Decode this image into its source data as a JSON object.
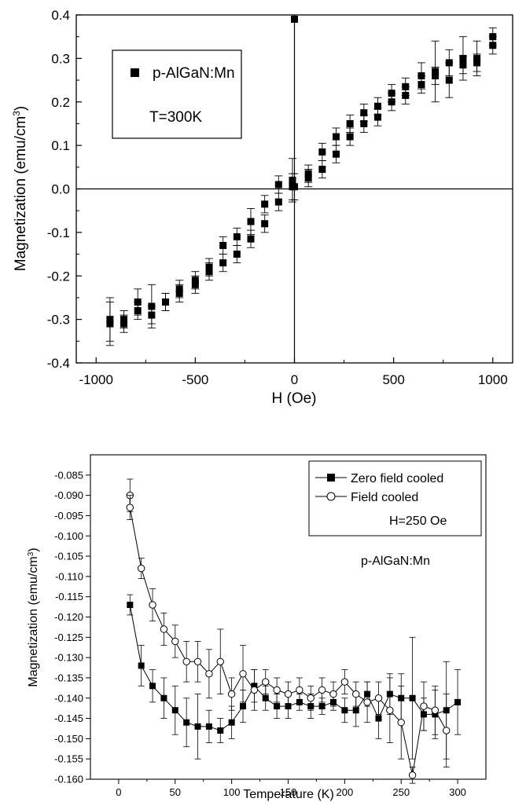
{
  "chart_data": [
    {
      "type": "scatter",
      "xlabel": "H (Oe)",
      "ylabel": "Magnetization (emu/cm3)",
      "ylabel_main": "Magnetization (emu/cm",
      "ylabel_sup": "3",
      "ylabel_close": ")",
      "xlim": [
        -1100,
        1100
      ],
      "ylim": [
        -0.4,
        0.4
      ],
      "xticks": [
        -1000,
        -500,
        0,
        500,
        1000
      ],
      "yticks": [
        "-0.4",
        "-0.3",
        "-0.2",
        "-0.1",
        "0.0",
        "0.1",
        "0.2",
        "0.3",
        "0.4"
      ],
      "legend_entry": "p-AlGaN:Mn",
      "annotation": "T=300K",
      "legend_placement": "upper-left",
      "grid": false,
      "marker": "filled-square",
      "color": "#000000",
      "series": [
        {
          "x": [
            -930,
            -930,
            -860,
            -860,
            -790,
            -790,
            -720,
            -720,
            -650,
            -650,
            -580,
            -580,
            -500,
            -500,
            -430,
            -430,
            -360,
            -360,
            -290,
            -290,
            -220,
            -220,
            -150,
            -150,
            -80,
            -80,
            -10,
            -10,
            0,
            0,
            70,
            70,
            140,
            140,
            210,
            210,
            280,
            280,
            350,
            350,
            420,
            420,
            490,
            490,
            560,
            560,
            640,
            640,
            710,
            710,
            780,
            780,
            850,
            850,
            920,
            920,
            1000,
            1000
          ],
          "y": [
            -0.31,
            -0.3,
            -0.3,
            -0.31,
            -0.26,
            -0.28,
            -0.27,
            -0.29,
            -0.26,
            -0.26,
            -0.24,
            -0.23,
            -0.21,
            -0.22,
            -0.18,
            -0.19,
            -0.13,
            -0.17,
            -0.11,
            -0.15,
            -0.075,
            -0.115,
            -0.035,
            -0.08,
            0.01,
            -0.03,
            0.02,
            0.005,
            0.39,
            0.005,
            0.025,
            0.035,
            0.085,
            0.045,
            0.12,
            0.08,
            0.15,
            0.12,
            0.175,
            0.15,
            0.19,
            0.165,
            0.22,
            0.2,
            0.235,
            0.215,
            0.26,
            0.24,
            0.27,
            0.26,
            0.29,
            0.25,
            0.3,
            0.285,
            0.3,
            0.29,
            0.35,
            0.33
          ],
          "err": [
            0.05,
            0.05,
            0.02,
            0.02,
            0.03,
            0.02,
            0.05,
            0.02,
            0.02,
            0.02,
            0.02,
            0.02,
            0.02,
            0.02,
            0.02,
            0.02,
            0.02,
            0.02,
            0.02,
            0.02,
            0.03,
            0.02,
            0.02,
            0.02,
            0.02,
            0.02,
            0.05,
            0.03,
            0.0,
            0.03,
            0.02,
            0.02,
            0.02,
            0.02,
            0.02,
            0.02,
            0.02,
            0.02,
            0.02,
            0.02,
            0.02,
            0.02,
            0.02,
            0.02,
            0.02,
            0.02,
            0.03,
            0.02,
            0.07,
            0.02,
            0.03,
            0.04,
            0.05,
            0.02,
            0.04,
            0.02,
            0.02,
            0.02
          ]
        }
      ]
    },
    {
      "type": "line",
      "xlabel": "Temperature (K)",
      "ylabel": "Magnetization (emu/cm3)",
      "ylabel_main": "Magnetization (emu/cm",
      "ylabel_sup": "3",
      "ylabel_close": ")",
      "xlim": [
        -25,
        325
      ],
      "ylim": [
        -0.16,
        -0.08
      ],
      "xticks": [
        0,
        50,
        100,
        150,
        200,
        250,
        300
      ],
      "yticks": [
        "-0.085",
        "-0.090",
        "-0.095",
        "-0.100",
        "-0.105",
        "-0.110",
        "-0.115",
        "-0.120",
        "-0.125",
        "-0.130",
        "-0.135",
        "-0.140",
        "-0.145",
        "-0.150",
        "-0.155",
        "-0.160"
      ],
      "annotation_field": "H=250 Oe",
      "annotation_sample": "p-AlGaN:Mn",
      "legend_placement": "upper-right",
      "grid": false,
      "series": [
        {
          "name": "Zero field cooled",
          "marker": "filled-square",
          "x": [
            10,
            20,
            30,
            40,
            50,
            60,
            70,
            80,
            90,
            100,
            110,
            120,
            130,
            140,
            150,
            160,
            170,
            180,
            190,
            200,
            210,
            220,
            230,
            240,
            250,
            260,
            270,
            280,
            290,
            300
          ],
          "y": [
            -0.117,
            -0.132,
            -0.137,
            -0.14,
            -0.143,
            -0.146,
            -0.147,
            -0.147,
            -0.148,
            -0.146,
            -0.142,
            -0.137,
            -0.14,
            -0.142,
            -0.142,
            -0.141,
            -0.142,
            -0.142,
            -0.141,
            -0.143,
            -0.143,
            -0.139,
            -0.145,
            -0.139,
            -0.14,
            -0.14,
            -0.144,
            -0.144,
            -0.143,
            -0.141
          ],
          "err": [
            0.0025,
            0.005,
            0.004,
            0.005,
            0.006,
            0.006,
            0.008,
            0.004,
            0.003,
            0.004,
            0.004,
            0.004,
            0.003,
            0.003,
            0.003,
            0.002,
            0.003,
            0.002,
            0.002,
            0.003,
            0.004,
            0.003,
            0.005,
            0.005,
            0.006,
            0.015,
            0.004,
            0.006,
            0.012,
            0.008
          ]
        },
        {
          "name": "Field cooled",
          "marker": "open-circle",
          "x": [
            10,
            10,
            20,
            30,
            40,
            50,
            60,
            70,
            80,
            90,
            100,
            110,
            120,
            130,
            140,
            150,
            160,
            170,
            180,
            190,
            200,
            210,
            220,
            230,
            240,
            250,
            260,
            270,
            280,
            290
          ],
          "y": [
            -0.09,
            -0.093,
            -0.108,
            -0.117,
            -0.123,
            -0.126,
            -0.131,
            -0.131,
            -0.134,
            -0.131,
            -0.139,
            -0.134,
            -0.138,
            -0.136,
            -0.138,
            -0.139,
            -0.138,
            -0.14,
            -0.138,
            -0.139,
            -0.136,
            -0.139,
            -0.141,
            -0.14,
            -0.143,
            -0.146,
            -0.159,
            -0.142,
            -0.143,
            -0.148
          ],
          "err": [
            0.004,
            0.003,
            0.0025,
            0.004,
            0.004,
            0.004,
            0.005,
            0.005,
            0.006,
            0.008,
            0.004,
            0.007,
            0.005,
            0.003,
            0.003,
            0.003,
            0.003,
            0.003,
            0.003,
            0.003,
            0.003,
            0.003,
            0.005,
            0.004,
            0.008,
            0.009,
            0.002,
            0.006,
            0.006,
            0.009
          ]
        }
      ],
      "legend": {
        "entries": [
          "Zero field cooled",
          "Field cooled"
        ]
      }
    }
  ]
}
